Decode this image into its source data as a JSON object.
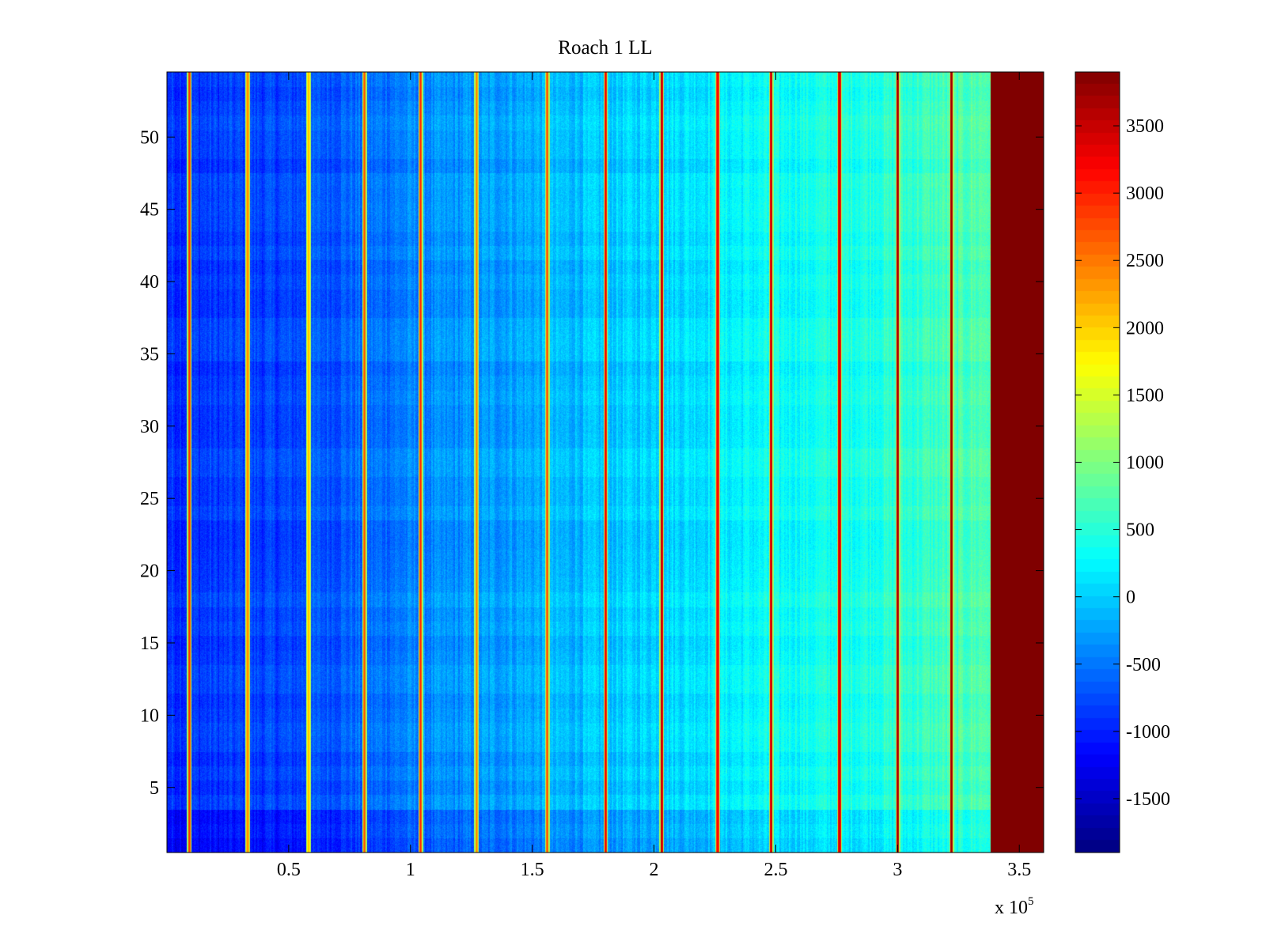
{
  "chart_data": {
    "type": "heatmap",
    "title": "Roach 1 LL",
    "xlabel": "",
    "ylabel": "",
    "xlim": [
      0,
      360000
    ],
    "ylim": [
      0.5,
      54.5
    ],
    "rows": 54,
    "x_ticks": [
      50000,
      100000,
      150000,
      200000,
      250000,
      300000,
      350000
    ],
    "x_tick_labels": [
      "0.5",
      "1",
      "1.5",
      "2",
      "2.5",
      "3",
      "3.5"
    ],
    "x_exponent_label": {
      "base": "x 10",
      "exp": "5"
    },
    "y_ticks": [
      5,
      10,
      15,
      20,
      25,
      30,
      35,
      40,
      45,
      50
    ],
    "y_tick_labels": [
      "5",
      "10",
      "15",
      "20",
      "25",
      "30",
      "35",
      "40",
      "45",
      "50"
    ],
    "colormap": "jet",
    "clim": [
      -1900,
      3900
    ],
    "colorbar_ticks": [
      -1500,
      -1000,
      -500,
      0,
      500,
      1000,
      1500,
      2000,
      2500,
      3000,
      3500
    ],
    "colorbar_tick_labels": [
      "-1500",
      "-1000",
      "-500",
      "0",
      "500",
      "1000",
      "1500",
      "2000",
      "2500",
      "3000",
      "3500"
    ],
    "background_trend": [
      {
        "x": 0,
        "value": -900
      },
      {
        "x": 50000,
        "value": -800
      },
      {
        "x": 100000,
        "value": -450
      },
      {
        "x": 150000,
        "value": -200
      },
      {
        "x": 200000,
        "value": 50
      },
      {
        "x": 250000,
        "value": 300
      },
      {
        "x": 300000,
        "value": 500
      },
      {
        "x": 337000,
        "value": 750
      }
    ],
    "saturated_region": {
      "x_start": 338000,
      "x_end": 360000,
      "value": 3900
    },
    "vertical_lines": [
      {
        "x": 9000,
        "value": 3000
      },
      {
        "x": 33000,
        "value": 2500
      },
      {
        "x": 58000,
        "value": 2200
      },
      {
        "x": 81000,
        "value": 2800
      },
      {
        "x": 104000,
        "value": 3000
      },
      {
        "x": 127000,
        "value": 2500
      },
      {
        "x": 156000,
        "value": 2800
      },
      {
        "x": 180000,
        "value": 3300
      },
      {
        "x": 203000,
        "value": 3600
      },
      {
        "x": 226000,
        "value": 3300
      },
      {
        "x": 248000,
        "value": 3600
      },
      {
        "x": 276000,
        "value": 3600
      },
      {
        "x": 300000,
        "value": 3800
      },
      {
        "x": 322000,
        "value": 3800
      }
    ],
    "low_rows": {
      "y_start": 0.5,
      "y_end": 3.5,
      "offset": -250
    }
  }
}
